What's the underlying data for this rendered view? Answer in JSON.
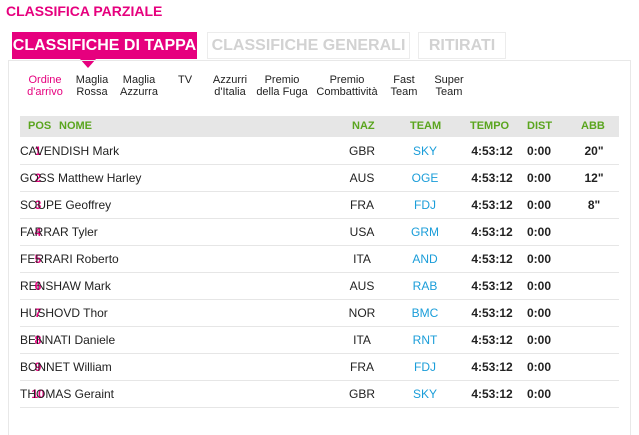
{
  "page_title": "CLASSIFICA PARZIALE",
  "main_tabs": [
    {
      "label": "CLASSIFICHE DI TAPPA"
    },
    {
      "label": "CLASSIFICHE GENERALI"
    },
    {
      "label": "RITIRATI"
    }
  ],
  "sub_tabs": [
    {
      "line1": "Ordine",
      "line2": "d'arrivo"
    },
    {
      "line1": "Maglia",
      "line2": "Rossa"
    },
    {
      "line1": "Maglia",
      "line2": "Azzurra"
    },
    {
      "line1": "TV",
      "line2": ""
    },
    {
      "line1": "Azzurri",
      "line2": "d'Italia"
    },
    {
      "line1": "Premio",
      "line2": "della Fuga"
    },
    {
      "line1": "Premio",
      "line2": "Combattività"
    },
    {
      "line1": "Fast",
      "line2": "Team"
    },
    {
      "line1": "Super",
      "line2": "Team"
    }
  ],
  "table": {
    "headers": {
      "pos": "POS",
      "nome": "NOME",
      "naz": "NAZ",
      "team": "TEAM",
      "tempo": "TEMPO",
      "dist": "DIST",
      "abb": "ABB"
    },
    "rows": [
      {
        "pos": "1",
        "nome": "CAVENDISH Mark",
        "naz": "GBR",
        "team": "SKY",
        "tempo": "4:53:12",
        "dist": "0:00",
        "abb": "20\""
      },
      {
        "pos": "2",
        "nome": "GOSS Matthew Harley",
        "naz": "AUS",
        "team": "OGE",
        "tempo": "4:53:12",
        "dist": "0:00",
        "abb": "12\""
      },
      {
        "pos": "3",
        "nome": "SOUPE Geoffrey",
        "naz": "FRA",
        "team": "FDJ",
        "tempo": "4:53:12",
        "dist": "0:00",
        "abb": "8\""
      },
      {
        "pos": "4",
        "nome": "FARRAR Tyler",
        "naz": "USA",
        "team": "GRM",
        "tempo": "4:53:12",
        "dist": "0:00",
        "abb": ""
      },
      {
        "pos": "5",
        "nome": "FERRARI Roberto",
        "naz": "ITA",
        "team": "AND",
        "tempo": "4:53:12",
        "dist": "0:00",
        "abb": ""
      },
      {
        "pos": "6",
        "nome": "RENSHAW Mark",
        "naz": "AUS",
        "team": "RAB",
        "tempo": "4:53:12",
        "dist": "0:00",
        "abb": ""
      },
      {
        "pos": "7",
        "nome": "HUSHOVD Thor",
        "naz": "NOR",
        "team": "BMC",
        "tempo": "4:53:12",
        "dist": "0:00",
        "abb": ""
      },
      {
        "pos": "8",
        "nome": "BENNATI Daniele",
        "naz": "ITA",
        "team": "RNT",
        "tempo": "4:53:12",
        "dist": "0:00",
        "abb": ""
      },
      {
        "pos": "9",
        "nome": "BONNET William",
        "naz": "FRA",
        "team": "FDJ",
        "tempo": "4:53:12",
        "dist": "0:00",
        "abb": ""
      },
      {
        "pos": "10",
        "nome": "THOMAS Geraint",
        "naz": "GBR",
        "team": "SKY",
        "tempo": "4:53:12",
        "dist": "0:00",
        "abb": ""
      }
    ]
  },
  "colors": {
    "accent": "#e6007e",
    "header_text": "#5aa51e",
    "team_link": "#1a9dd9"
  }
}
